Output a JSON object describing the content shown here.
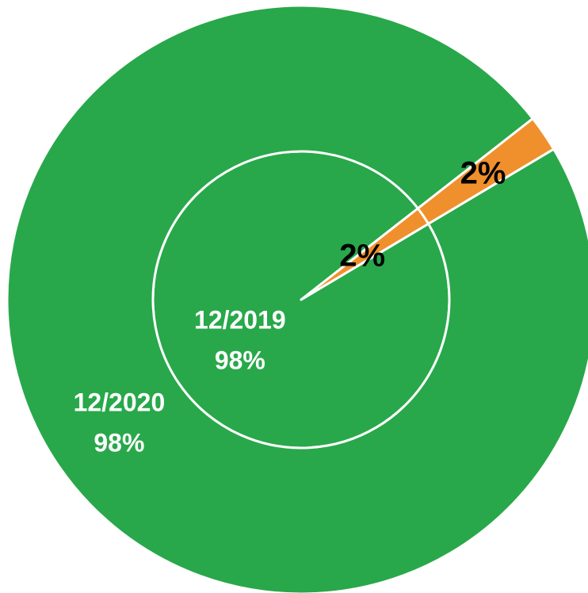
{
  "chart_data": {
    "type": "nested-pie",
    "startangle": 38,
    "colors": [
      "#28a84a",
      "#f0902c"
    ],
    "label_colors": [
      "#ffffff",
      "#000000"
    ],
    "series": [
      {
        "name": "12/2019",
        "values": [
          98,
          2
        ],
        "value_labels": [
          "98%",
          "2%"
        ]
      },
      {
        "name": "12/2020",
        "values": [
          98,
          2
        ],
        "value_labels": [
          "98%",
          "2%"
        ]
      }
    ]
  }
}
